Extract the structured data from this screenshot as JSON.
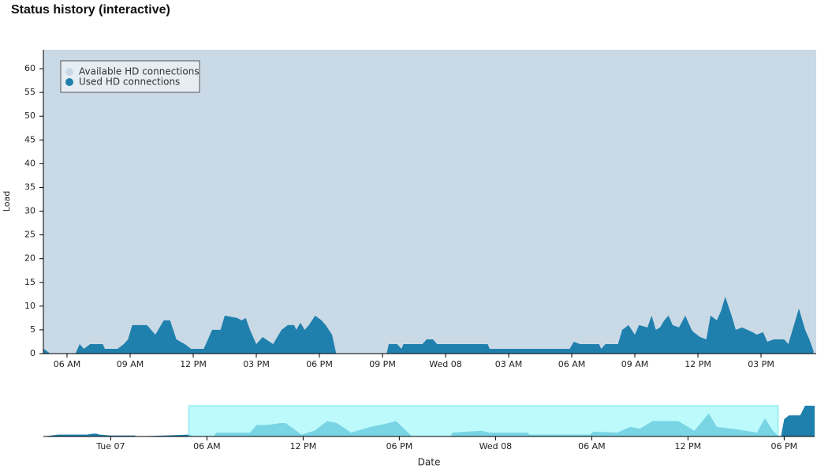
{
  "chart_data": [
    {
      "type": "area",
      "title": "Status history (interactive)",
      "ylabel": "Load",
      "xlim": [
        4.875,
        41.625
      ],
      "ylim": [
        0,
        64
      ],
      "xticks": [
        {
          "value": 6,
          "label": "06 AM"
        },
        {
          "value": 9,
          "label": "09 AM"
        },
        {
          "value": 12,
          "label": "12 PM"
        },
        {
          "value": 15,
          "label": "03 PM"
        },
        {
          "value": 18,
          "label": "06 PM"
        },
        {
          "value": 21,
          "label": "09 PM"
        },
        {
          "value": 24,
          "label": "Wed 08"
        },
        {
          "value": 27,
          "label": "03 AM"
        },
        {
          "value": 30,
          "label": "06 AM"
        },
        {
          "value": 33,
          "label": "09 AM"
        },
        {
          "value": 36,
          "label": "12 PM"
        },
        {
          "value": 39,
          "label": "03 PM"
        }
      ],
      "yticks": [
        0,
        5,
        10,
        15,
        20,
        25,
        30,
        35,
        40,
        45,
        50,
        55,
        60
      ],
      "legend": "upper left",
      "grid": false,
      "series": [
        {
          "name": "Available HD connections",
          "color": "#c9d9e6",
          "x": [
            4.875,
            41.625
          ],
          "values": [
            64,
            64
          ]
        },
        {
          "name": "Used HD connections",
          "color": "#1f7fad",
          "x": [
            4.9,
            5.2,
            6.4,
            6.6,
            6.8,
            7.1,
            7.7,
            7.8,
            8.4,
            8.7,
            8.9,
            9.1,
            9.8,
            10.0,
            10.2,
            10.6,
            10.9,
            11.2,
            11.6,
            11.9,
            12.5,
            12.7,
            12.9,
            13.3,
            13.5,
            14.1,
            14.3,
            14.5,
            14.7,
            15.0,
            15.3,
            15.8,
            16.2,
            16.5,
            16.8,
            16.9,
            17.1,
            17.3,
            17.5,
            17.8,
            18.1,
            18.3,
            18.6,
            18.8,
            21.2,
            21.3,
            21.7,
            21.9,
            22.0,
            22.9,
            23.1,
            23.4,
            23.6,
            26.0,
            26.1,
            29.9,
            30.1,
            30.4,
            31.3,
            31.4,
            31.6,
            32.2,
            32.4,
            32.7,
            33.0,
            33.2,
            33.6,
            33.8,
            34.0,
            34.2,
            34.4,
            34.6,
            34.8,
            35.1,
            35.4,
            35.7,
            35.8,
            36.1,
            36.4,
            36.6,
            36.9,
            37.1,
            37.3,
            37.6,
            37.8,
            38.1,
            38.6,
            38.8,
            39.1,
            39.3,
            39.6,
            40.1,
            40.3,
            40.5,
            40.8,
            41.1,
            41.3,
            41.5
          ],
          "values": [
            1,
            0,
            0,
            2,
            1,
            2,
            2,
            1,
            1,
            2,
            3,
            6,
            6,
            5,
            4,
            7,
            7,
            3,
            2,
            1,
            1,
            3,
            5,
            5,
            8,
            7.5,
            7,
            7.5,
            5,
            2,
            3.5,
            2,
            5,
            6,
            6,
            5,
            6.5,
            5,
            6,
            8,
            7,
            6,
            4,
            0,
            0,
            2,
            2,
            1,
            2,
            2,
            3,
            3,
            2,
            2,
            1,
            1,
            2.5,
            2,
            2,
            1,
            2,
            2,
            5,
            6,
            4,
            6,
            5.5,
            8,
            5,
            5.5,
            7,
            8,
            6,
            5.5,
            8,
            5,
            4.5,
            3.5,
            3,
            8,
            7,
            9,
            12,
            8,
            5,
            5.5,
            4.5,
            4,
            4.5,
            2.5,
            3,
            3,
            2,
            5,
            9.5,
            5,
            3,
            0.5
          ]
        }
      ]
    },
    {
      "type": "area",
      "xlabel": "Date",
      "xlim": [
        -4.2,
        43.9
      ],
      "ylim": [
        0,
        16
      ],
      "xticks": [
        {
          "value": 0,
          "label": "Tue 07"
        },
        {
          "value": 6,
          "label": "06 AM"
        },
        {
          "value": 12,
          "label": "12 PM"
        },
        {
          "value": 18,
          "label": "06 PM"
        },
        {
          "value": 24,
          "label": "Wed 08"
        },
        {
          "value": 30,
          "label": "06 AM"
        },
        {
          "value": 36,
          "label": "12 PM"
        },
        {
          "value": 42,
          "label": "06 PM"
        }
      ],
      "brush": [
        4.875,
        41.625
      ],
      "brush_color": "#9ff8fb",
      "series": [
        {
          "name": "Used HD connections",
          "color": "#1f7fad",
          "x": [
            -4.2,
            -3.7,
            -3.3,
            -1.5,
            -1.1,
            -0.9,
            -0.7,
            0,
            1.5,
            1.6,
            4.9,
            5.2,
            6.4,
            6.6,
            7.1,
            8.7,
            9.1,
            9.8,
            10.6,
            10.9,
            11.9,
            12.7,
            13.5,
            14.1,
            15.0,
            16.2,
            17.1,
            17.8,
            18.8,
            21.2,
            21.3,
            23.1,
            23.6,
            26.0,
            26.1,
            29.9,
            30.1,
            31.6,
            32.4,
            33.0,
            33.8,
            34.6,
            35.4,
            36.4,
            37.3,
            37.8,
            38.8,
            39.6,
            40.3,
            40.8,
            41.3,
            41.6,
            41.8,
            42.0,
            42.3,
            43.0,
            43.3,
            43.9
          ],
          "values": [
            0,
            0.5,
            1,
            1,
            1.5,
            1.5,
            1,
            0.5,
            0.5,
            0,
            1,
            0,
            0,
            2,
            2,
            2,
            6,
            6,
            7,
            7,
            1,
            3,
            8,
            7,
            2,
            5,
            6.5,
            8,
            0,
            0,
            2,
            3,
            2,
            2,
            1,
            1,
            2.5,
            2,
            5,
            4,
            8,
            8,
            8,
            3,
            12,
            5,
            4,
            3,
            2,
            9.5,
            3,
            0.5,
            0,
            9,
            11,
            11,
            16,
            16
          ]
        }
      ]
    }
  ]
}
